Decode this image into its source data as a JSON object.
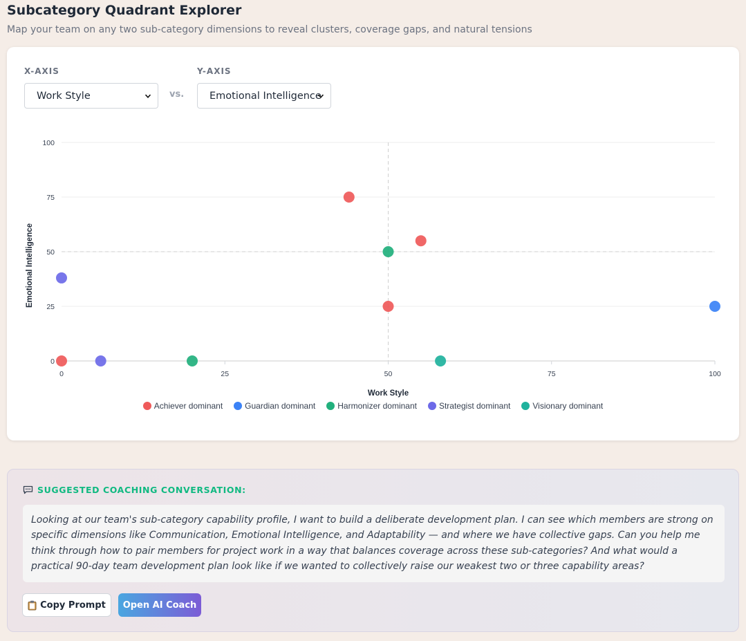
{
  "header": {
    "title": "Subcategory Quadrant Explorer",
    "subtitle": "Map your team on any two sub-category dimensions to reveal clusters, coverage gaps, and natural tensions"
  },
  "controls": {
    "x_axis_label": "X-AXIS",
    "y_axis_label": "Y-AXIS",
    "x_axis_value": "Work Style",
    "y_axis_value": "Emotional Intelligence",
    "vs_label": "vs."
  },
  "chart_data": {
    "type": "scatter",
    "xlabel": "Work Style",
    "ylabel": "Emotional Intelligence",
    "xlim": [
      0,
      100
    ],
    "ylim": [
      0,
      100
    ],
    "x_ticks": [
      0,
      25,
      50,
      75,
      100
    ],
    "y_ticks": [
      0,
      25,
      50,
      75,
      100
    ],
    "quadrant_lines": {
      "x": 50,
      "y": 50
    },
    "legend_position": "bottom",
    "series": [
      {
        "name": "Achiever dominant",
        "color": "#ef5a5a",
        "points": [
          [
            0,
            0
          ],
          [
            44,
            75
          ],
          [
            55,
            55
          ],
          [
            50,
            25
          ]
        ]
      },
      {
        "name": "Guardian dominant",
        "color": "#3b82f6",
        "points": [
          [
            100,
            25
          ]
        ]
      },
      {
        "name": "Harmonizer dominant",
        "color": "#22b07d",
        "points": [
          [
            20,
            0
          ],
          [
            50,
            50
          ]
        ]
      },
      {
        "name": "Strategist dominant",
        "color": "#6d6ae8",
        "points": [
          [
            0,
            38
          ],
          [
            6,
            0
          ]
        ]
      },
      {
        "name": "Visionary dominant",
        "color": "#1fb29d",
        "points": [
          [
            58,
            0
          ]
        ]
      }
    ]
  },
  "coaching": {
    "icon": "speech-bubble-icon",
    "heading": "SUGGESTED COACHING CONVERSATION:",
    "prompt": "Looking at our team's sub-category capability profile, I want to build a deliberate development plan. I can see which members are strong on specific dimensions like Communication, Emotional Intelligence, and Adaptability — and where we have collective gaps. Can you help me think through how to pair members for project work in a way that balances coverage across these sub-categories? And what would a practical 90-day team development plan look like if we wanted to collectively raise our weakest two or three capability areas?",
    "copy_button": "Copy Prompt",
    "open_button": "Open AI Coach"
  }
}
